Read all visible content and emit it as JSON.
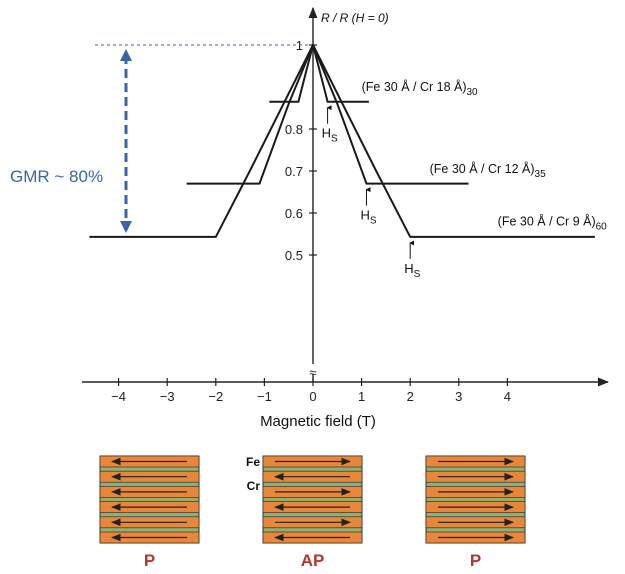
{
  "colors": {
    "curve": "#1a1a1a",
    "gmr": "#3a64a8",
    "fe_layer": "#e8873a",
    "cr_layer": "#8fb070",
    "config_label": "#b5362f"
  },
  "chart_data": {
    "type": "line",
    "xlabel": "Magnetic field (T)",
    "ylabel": "R / R (H = 0)",
    "xlim": [
      -4.7,
      5.9
    ],
    "ylim": [
      0.5,
      1.0
    ],
    "x_ticks": [
      "-4",
      "-3",
      "-2",
      "-1",
      "0",
      "1",
      "2",
      "3",
      "4"
    ],
    "y_ticks": [
      "0.5",
      "0.6",
      "0.7",
      "0.8",
      "1"
    ],
    "axis_break": "≈",
    "grid": false,
    "series": [
      {
        "name": "(Fe 30 Å / Cr 18 Å)30",
        "label_main": "(Fe 30 Å / Cr 18 Å)",
        "label_sub": "30",
        "points": [
          [
            -0.9,
            0.865
          ],
          [
            -0.3,
            0.865
          ],
          [
            -0.1,
            0.955
          ],
          [
            0.0,
            1.0
          ],
          [
            0.1,
            0.955
          ],
          [
            0.3,
            0.865
          ],
          [
            1.15,
            0.865
          ]
        ],
        "hs_x": 0.3
      },
      {
        "name": "(Fe 30 Å / Cr 12 Å)35",
        "label_main": "(Fe 30 Å / Cr 12 Å)",
        "label_sub": "35",
        "points": [
          [
            -2.6,
            0.67
          ],
          [
            -1.1,
            0.67
          ],
          [
            -0.5,
            0.86
          ],
          [
            0.0,
            1.0
          ],
          [
            0.5,
            0.86
          ],
          [
            1.1,
            0.67
          ],
          [
            3.2,
            0.67
          ]
        ],
        "hs_x": 1.1
      },
      {
        "name": "(Fe 30 Å / Cr 9 Å)60",
        "label_main": "(Fe 30 Å / Cr 9 Å)",
        "label_sub": "60",
        "points": [
          [
            -4.6,
            0.543
          ],
          [
            -2.0,
            0.543
          ],
          [
            -1.3,
            0.7
          ],
          [
            0.0,
            1.0
          ],
          [
            1.3,
            0.7
          ],
          [
            2.0,
            0.543
          ],
          [
            5.8,
            0.543
          ]
        ],
        "hs_x": 2.0
      }
    ],
    "annotations": {
      "hs_main": "H",
      "hs_sub": "S",
      "gmr_label": "GMR ~ 80%",
      "gmr_from": 1.0,
      "gmr_to": 0.543
    }
  },
  "stacks": [
    {
      "label": "P",
      "arrows": [
        "left",
        "left",
        "left",
        "left",
        "left",
        "left"
      ],
      "layer_labels": null
    },
    {
      "label": "AP",
      "arrows": [
        "right",
        "left",
        "right",
        "left",
        "right",
        "left"
      ],
      "layer_labels": {
        "fe": "Fe",
        "cr": "Cr"
      }
    },
    {
      "label": "P",
      "arrows": [
        "right",
        "right",
        "right",
        "right",
        "right",
        "right"
      ],
      "layer_labels": null
    }
  ]
}
